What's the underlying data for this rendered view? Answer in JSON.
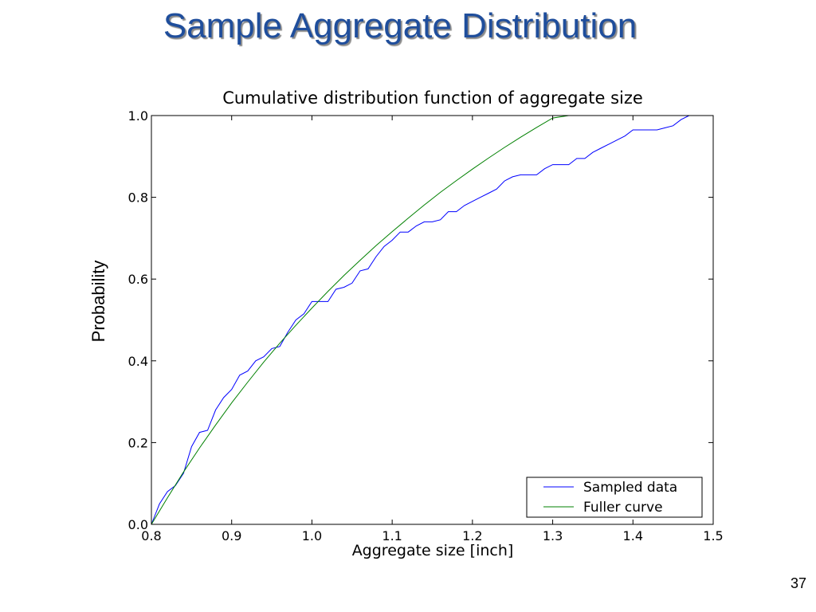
{
  "slide": {
    "title": "Sample Aggregate Distribution",
    "page_number": "37",
    "y_axis_label": "Probability"
  },
  "chart_data": {
    "type": "line",
    "title": "Cumulative distribution function of aggregate size",
    "xlabel": "Aggregate size [inch]",
    "ylabel": "Probability",
    "xlim": [
      0.8,
      1.5
    ],
    "ylim": [
      0.0,
      1.0
    ],
    "xticks": [
      "0.8",
      "0.9",
      "1.0",
      "1.1",
      "1.2",
      "1.3",
      "1.4",
      "1.5"
    ],
    "yticks": [
      "0.0",
      "0.2",
      "0.4",
      "0.6",
      "0.8",
      "1.0"
    ],
    "grid": false,
    "legend_position": "bottom-right",
    "series": [
      {
        "name": "Sampled data",
        "color": "#0000ff",
        "x": [
          0.8,
          0.81,
          0.82,
          0.83,
          0.84,
          0.85,
          0.86,
          0.87,
          0.88,
          0.89,
          0.9,
          0.91,
          0.92,
          0.93,
          0.94,
          0.95,
          0.96,
          0.97,
          0.98,
          0.99,
          1.0,
          1.01,
          1.02,
          1.03,
          1.04,
          1.05,
          1.06,
          1.07,
          1.08,
          1.09,
          1.1,
          1.11,
          1.12,
          1.13,
          1.14,
          1.15,
          1.16,
          1.17,
          1.18,
          1.19,
          1.2,
          1.21,
          1.22,
          1.23,
          1.24,
          1.25,
          1.26,
          1.27,
          1.28,
          1.29,
          1.3,
          1.31,
          1.32,
          1.33,
          1.34,
          1.35,
          1.36,
          1.37,
          1.38,
          1.39,
          1.4,
          1.41,
          1.42,
          1.43,
          1.44,
          1.45,
          1.46,
          1.47
        ],
        "y": [
          0.0,
          0.05,
          0.08,
          0.095,
          0.125,
          0.19,
          0.225,
          0.23,
          0.28,
          0.31,
          0.33,
          0.365,
          0.375,
          0.4,
          0.41,
          0.43,
          0.435,
          0.47,
          0.5,
          0.515,
          0.545,
          0.545,
          0.545,
          0.575,
          0.58,
          0.59,
          0.62,
          0.625,
          0.655,
          0.68,
          0.695,
          0.715,
          0.715,
          0.73,
          0.74,
          0.74,
          0.745,
          0.765,
          0.765,
          0.78,
          0.79,
          0.8,
          0.81,
          0.82,
          0.84,
          0.85,
          0.855,
          0.855,
          0.855,
          0.87,
          0.88,
          0.88,
          0.88,
          0.895,
          0.895,
          0.91,
          0.92,
          0.93,
          0.94,
          0.95,
          0.965,
          0.965,
          0.965,
          0.965,
          0.97,
          0.975,
          0.99,
          1.0
        ]
      },
      {
        "name": "Fuller curve",
        "color": "#008000",
        "x": [
          0.8,
          0.82,
          0.84,
          0.86,
          0.88,
          0.9,
          0.92,
          0.94,
          0.96,
          0.98,
          1.0,
          1.02,
          1.04,
          1.06,
          1.08,
          1.1,
          1.12,
          1.14,
          1.16,
          1.18,
          1.2,
          1.22,
          1.24,
          1.26,
          1.28,
          1.3,
          1.32,
          1.34,
          1.36,
          1.38,
          1.4,
          1.42,
          1.44,
          1.46,
          1.48,
          1.5
        ],
        "y": [
          0.0,
          0.065,
          0.128,
          0.187,
          0.243,
          0.297,
          0.348,
          0.397,
          0.443,
          0.487,
          0.529,
          0.57,
          0.609,
          0.646,
          0.682,
          0.716,
          0.749,
          0.781,
          0.812,
          0.841,
          0.869,
          0.896,
          0.922,
          0.947,
          0.971,
          0.994,
          1.0,
          1.0,
          1.0,
          1.0,
          1.0,
          1.0,
          1.0,
          1.0,
          1.0,
          1.0
        ]
      }
    ]
  }
}
